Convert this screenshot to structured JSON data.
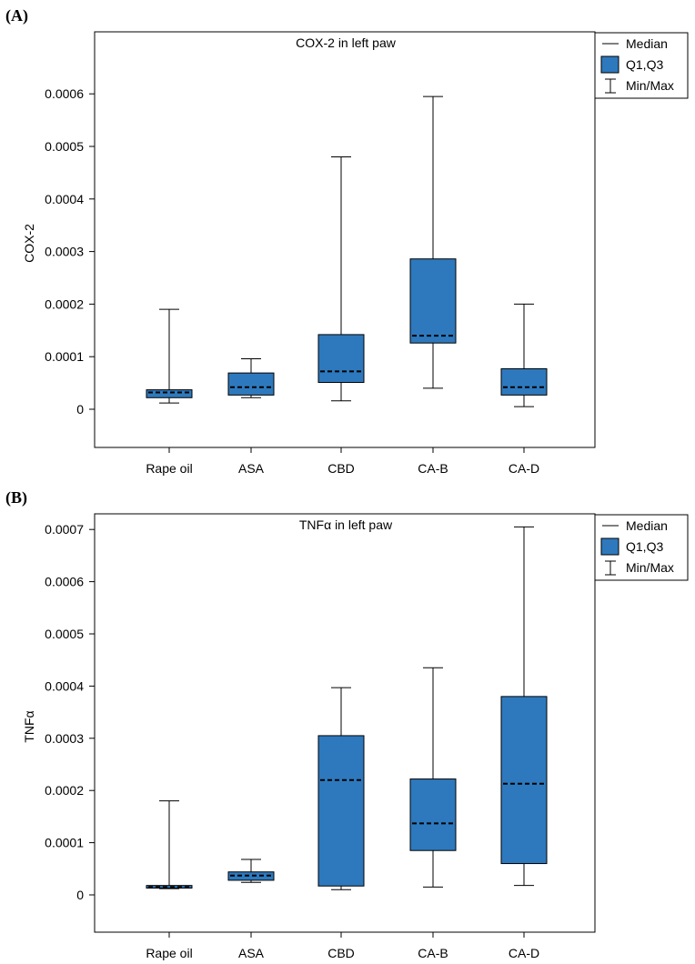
{
  "panel_labels": [
    "(A)",
    "(B)"
  ],
  "legend": {
    "median": "Median",
    "box": "Q1,Q3",
    "whisker": "Min/Max"
  },
  "colors": {
    "box_fill": "#2e79bd",
    "stroke": "#000000"
  },
  "chart_data": [
    {
      "type": "box",
      "title": "COX-2 in left paw",
      "xlabel": "",
      "ylabel": "COX-2",
      "ylim": [
        -7e-05,
        0.00069
      ],
      "y_ticks": [
        0,
        0.0001,
        0.0002,
        0.0003,
        0.0004,
        0.0005,
        0.0006
      ],
      "y_tick_labels": [
        "0",
        "0.0001",
        "0.0002",
        "0.0003",
        "0.0004",
        "0.0005",
        "0.0006"
      ],
      "categories": [
        "Rape oil",
        "ASA",
        "CBD",
        "CA-B",
        "CA-D"
      ],
      "boxes": [
        {
          "min": 1.2e-05,
          "q1": 2.2e-05,
          "median": 3.2e-05,
          "q3": 3.7e-05,
          "max": 0.00019
        },
        {
          "min": 2.2e-05,
          "q1": 2.7e-05,
          "median": 4.2e-05,
          "q3": 6.9e-05,
          "max": 9.6e-05
        },
        {
          "min": 1.6e-05,
          "q1": 5.1e-05,
          "median": 7.2e-05,
          "q3": 0.000142,
          "max": 0.00048
        },
        {
          "min": 4e-05,
          "q1": 0.000126,
          "median": 0.00014,
          "q3": 0.000286,
          "max": 0.000595
        },
        {
          "min": 5e-06,
          "q1": 2.7e-05,
          "median": 4.2e-05,
          "q3": 7.7e-05,
          "max": 0.0002
        }
      ],
      "legend_position": "top-right"
    },
    {
      "type": "box",
      "title": "TNFα in left paw",
      "xlabel": "",
      "ylabel": "TNFα",
      "ylim": [
        -7e-05,
        0.00079
      ],
      "y_ticks": [
        0,
        0.0001,
        0.0002,
        0.0003,
        0.0004,
        0.0005,
        0.0006,
        0.0007
      ],
      "y_tick_labels": [
        "0",
        "0.0001",
        "0.0002",
        "0.0003",
        "0.0004",
        "0.0005",
        "0.0006",
        "0.0007"
      ],
      "categories": [
        "Rape oil",
        "ASA",
        "CBD",
        "CA-B",
        "CA-D"
      ],
      "boxes": [
        {
          "min": 1.2e-05,
          "q1": 1.3e-05,
          "median": 1.5e-05,
          "q3": 1.8e-05,
          "max": 0.00018
        },
        {
          "min": 2.4e-05,
          "q1": 2.8e-05,
          "median": 3.7e-05,
          "q3": 4.4e-05,
          "max": 6.8e-05
        },
        {
          "min": 1e-05,
          "q1": 1.7e-05,
          "median": 0.00022,
          "q3": 0.000305,
          "max": 0.000397
        },
        {
          "min": 1.5e-05,
          "q1": 8.5e-05,
          "median": 0.000137,
          "q3": 0.000222,
          "max": 0.000435
        },
        {
          "min": 1.8e-05,
          "q1": 6e-05,
          "median": 0.000213,
          "q3": 0.00038,
          "max": 0.000705
        }
      ],
      "legend_position": "top-right"
    }
  ]
}
